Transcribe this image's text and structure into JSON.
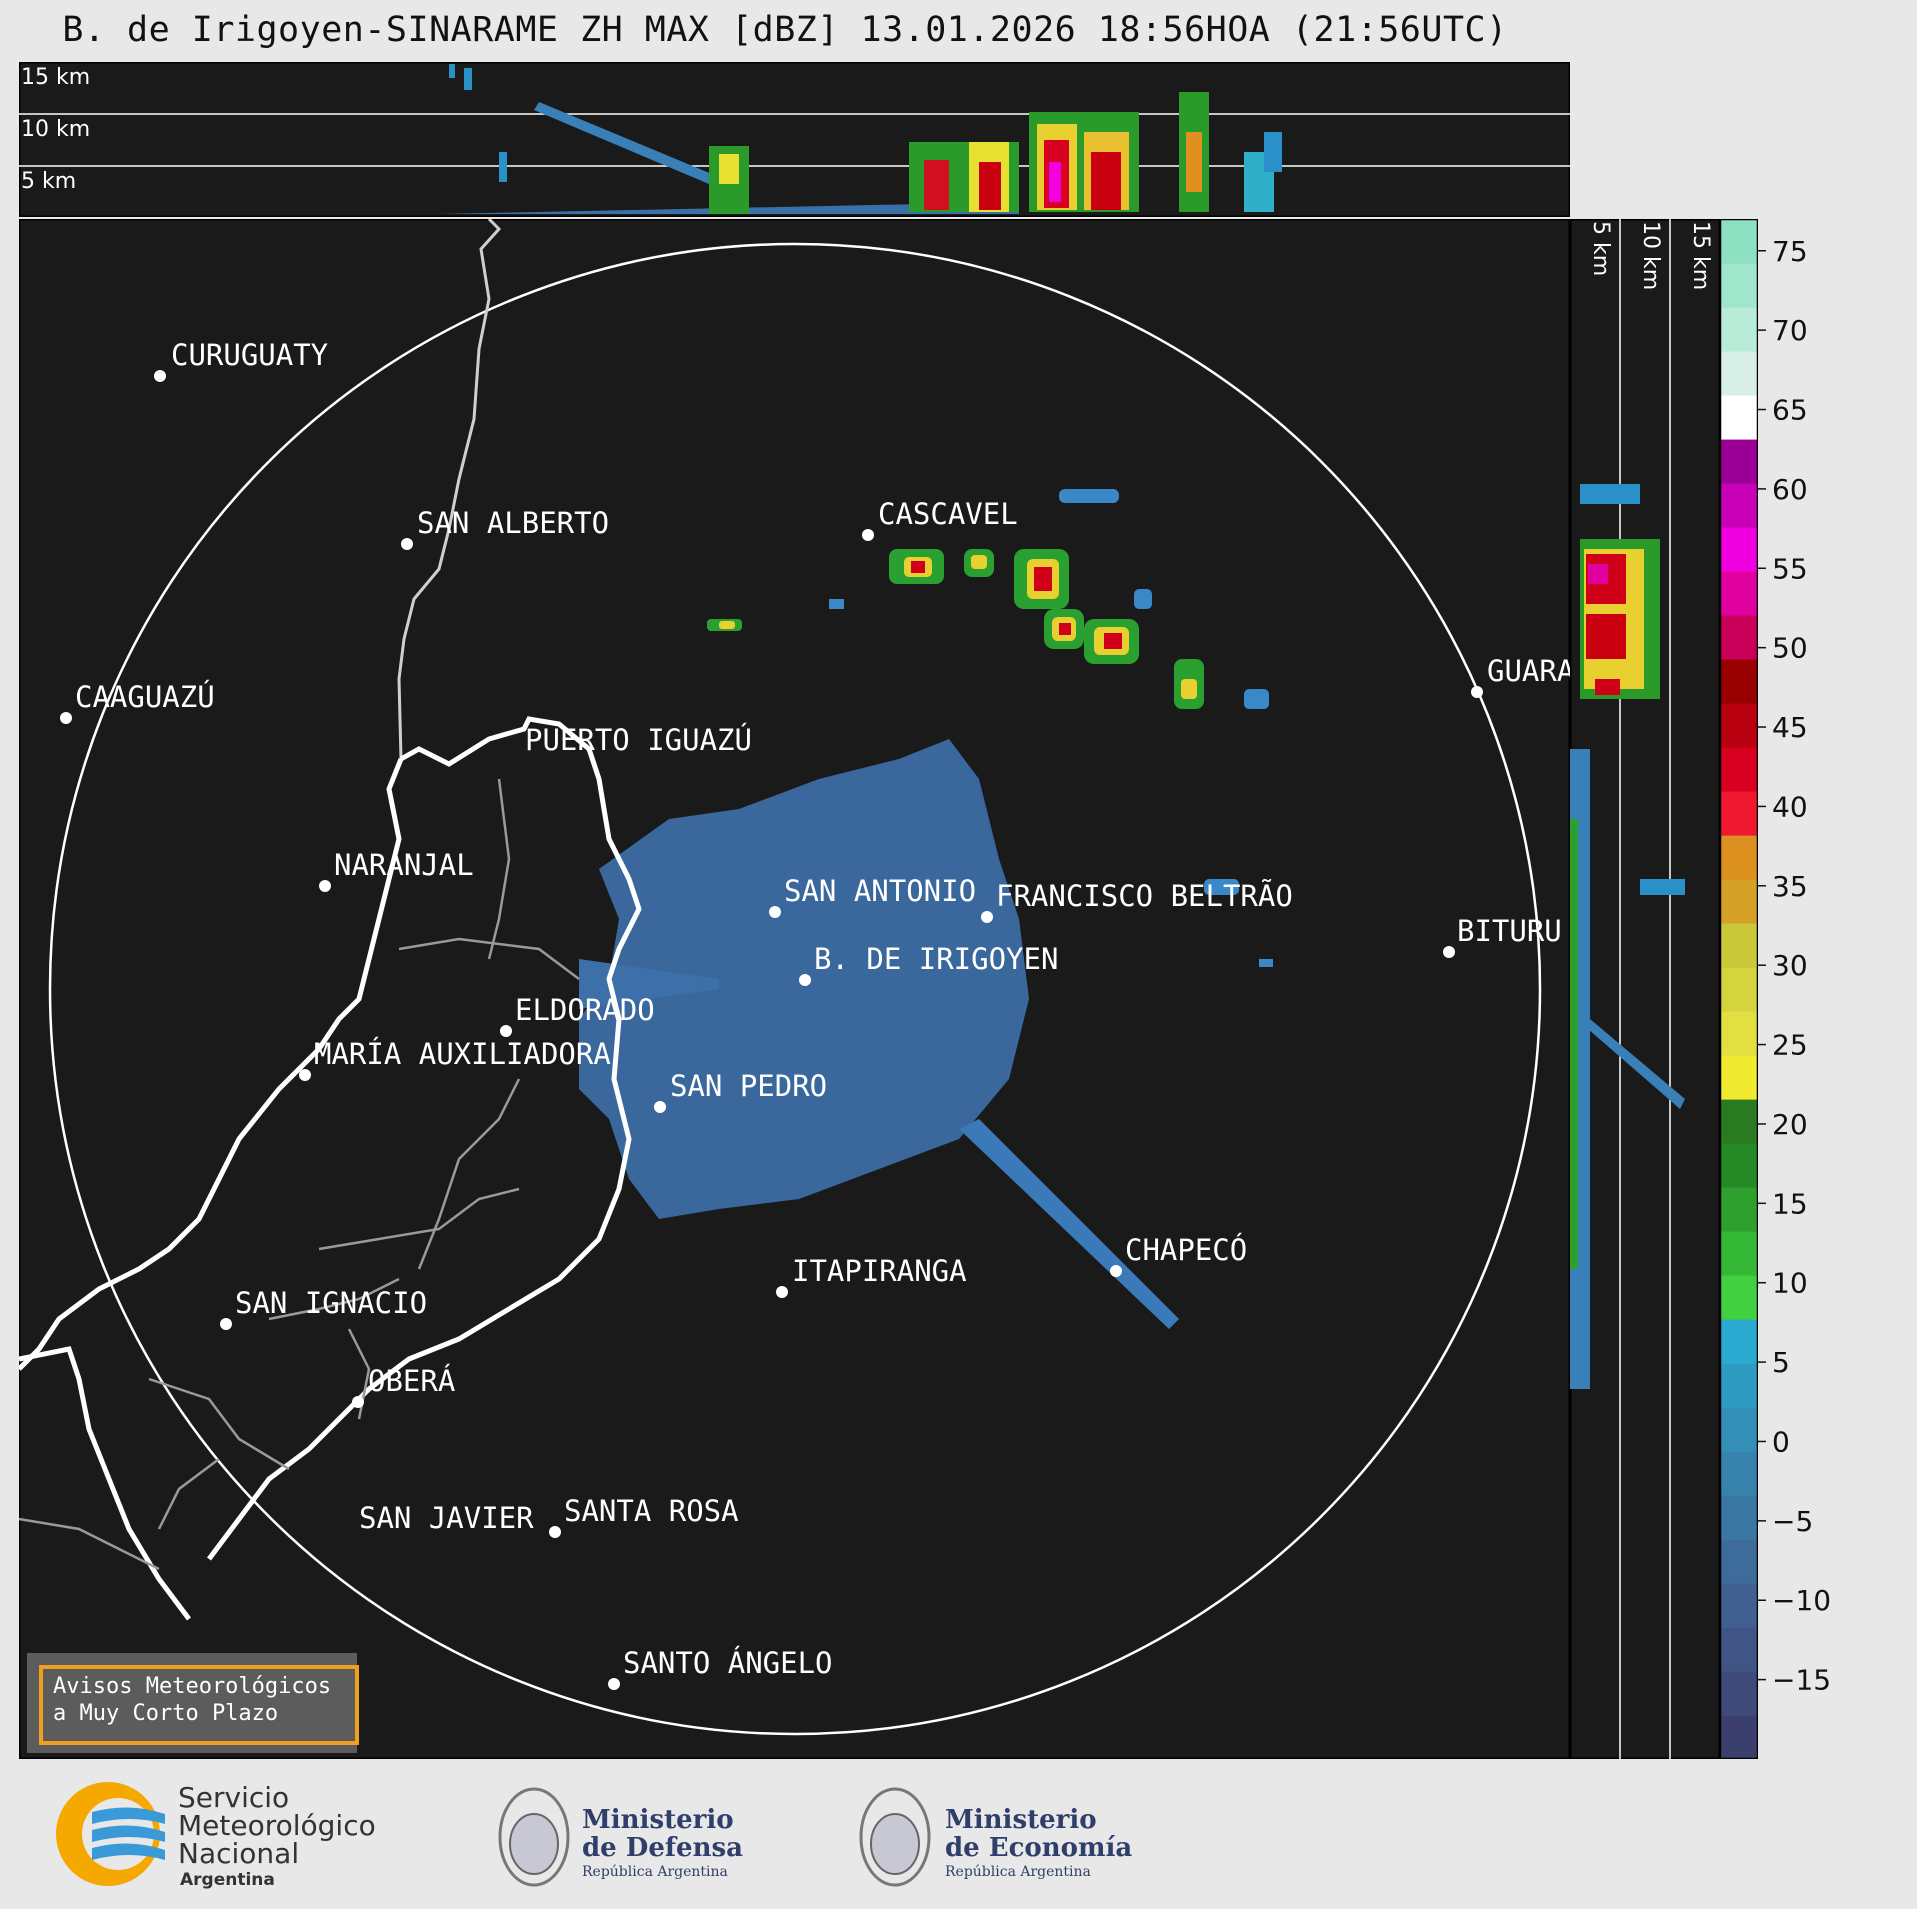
{
  "title": "B. de Irigoyen-SINARAME ZH MAX [dBZ] 13.01.2026 18:56HOA (21:56UTC)",
  "top_panel": {
    "height_labels": [
      "15 km",
      "10 km",
      "5 km"
    ]
  },
  "side_panel": {
    "height_labels": [
      "5 km",
      "10 km",
      "15 km"
    ]
  },
  "cities": [
    {
      "name": "CURUGUATY"
    },
    {
      "name": "SAN ALBERTO"
    },
    {
      "name": "CASCAVEL"
    },
    {
      "name": "CAAGUAZÚ"
    },
    {
      "name": "GUARA"
    },
    {
      "name": "PUERTO IGUAZÚ"
    },
    {
      "name": "NARANJAL"
    },
    {
      "name": "SAN ANTONIO"
    },
    {
      "name": "FRANCISCO BELTRÃO"
    },
    {
      "name": "BITURU"
    },
    {
      "name": "B. DE IRIGOYEN"
    },
    {
      "name": "ELDORADO"
    },
    {
      "name": "MARÍA AUXILIADORA"
    },
    {
      "name": "SAN PEDRO"
    },
    {
      "name": "CHAPECÓ"
    },
    {
      "name": "ITAPIRANGA"
    },
    {
      "name": "SAN IGNACIO"
    },
    {
      "name": "OBERÁ"
    },
    {
      "name": "SAN JAVIER"
    },
    {
      "name": "SANTA ROSA"
    },
    {
      "name": "SANTO ÁNGELO"
    }
  ],
  "colorbar": {
    "ticks": [
      "75",
      "70",
      "65",
      "60",
      "55",
      "50",
      "45",
      "40",
      "35",
      "30",
      "25",
      "20",
      "15",
      "10",
      "5",
      "0",
      "−5",
      "−10",
      "−15"
    ],
    "colors": [
      "#3b3f6e",
      "#3e4a7a",
      "#405586",
      "#3f6090",
      "#3d6b9a",
      "#3a77a3",
      "#3783ad",
      "#338fb7",
      "#2e9bc1",
      "#2aa9d1",
      "#40d040",
      "#35b835",
      "#2da02d",
      "#258a25",
      "#2a7a22",
      "#f0ea30",
      "#e2e040",
      "#d4d43e",
      "#c8c838",
      "#d4a028",
      "#dc9020",
      "#f01830",
      "#d80020",
      "#b80010",
      "#980000",
      "#c8005a",
      "#e000a0",
      "#f000e0",
      "#c800b8",
      "#9a0096",
      "#ffffff",
      "#d8f0e8",
      "#b8ecd8",
      "#a0e6cc",
      "#8ee0c2"
    ]
  },
  "warning_box": {
    "line1": "Avisos Meteorológicos",
    "line2": "a Muy Corto Plazo"
  },
  "logos": {
    "smn": {
      "line1": "Servicio",
      "line2": "Meteorológico",
      "line3": "Nacional",
      "line4": "Argentina"
    },
    "defensa": {
      "line1": "Ministerio",
      "line2": "de Defensa",
      "line3": "República Argentina"
    },
    "economia": {
      "line1": "Ministerio",
      "line2": "de Economía",
      "line3": "República Argentina"
    }
  }
}
